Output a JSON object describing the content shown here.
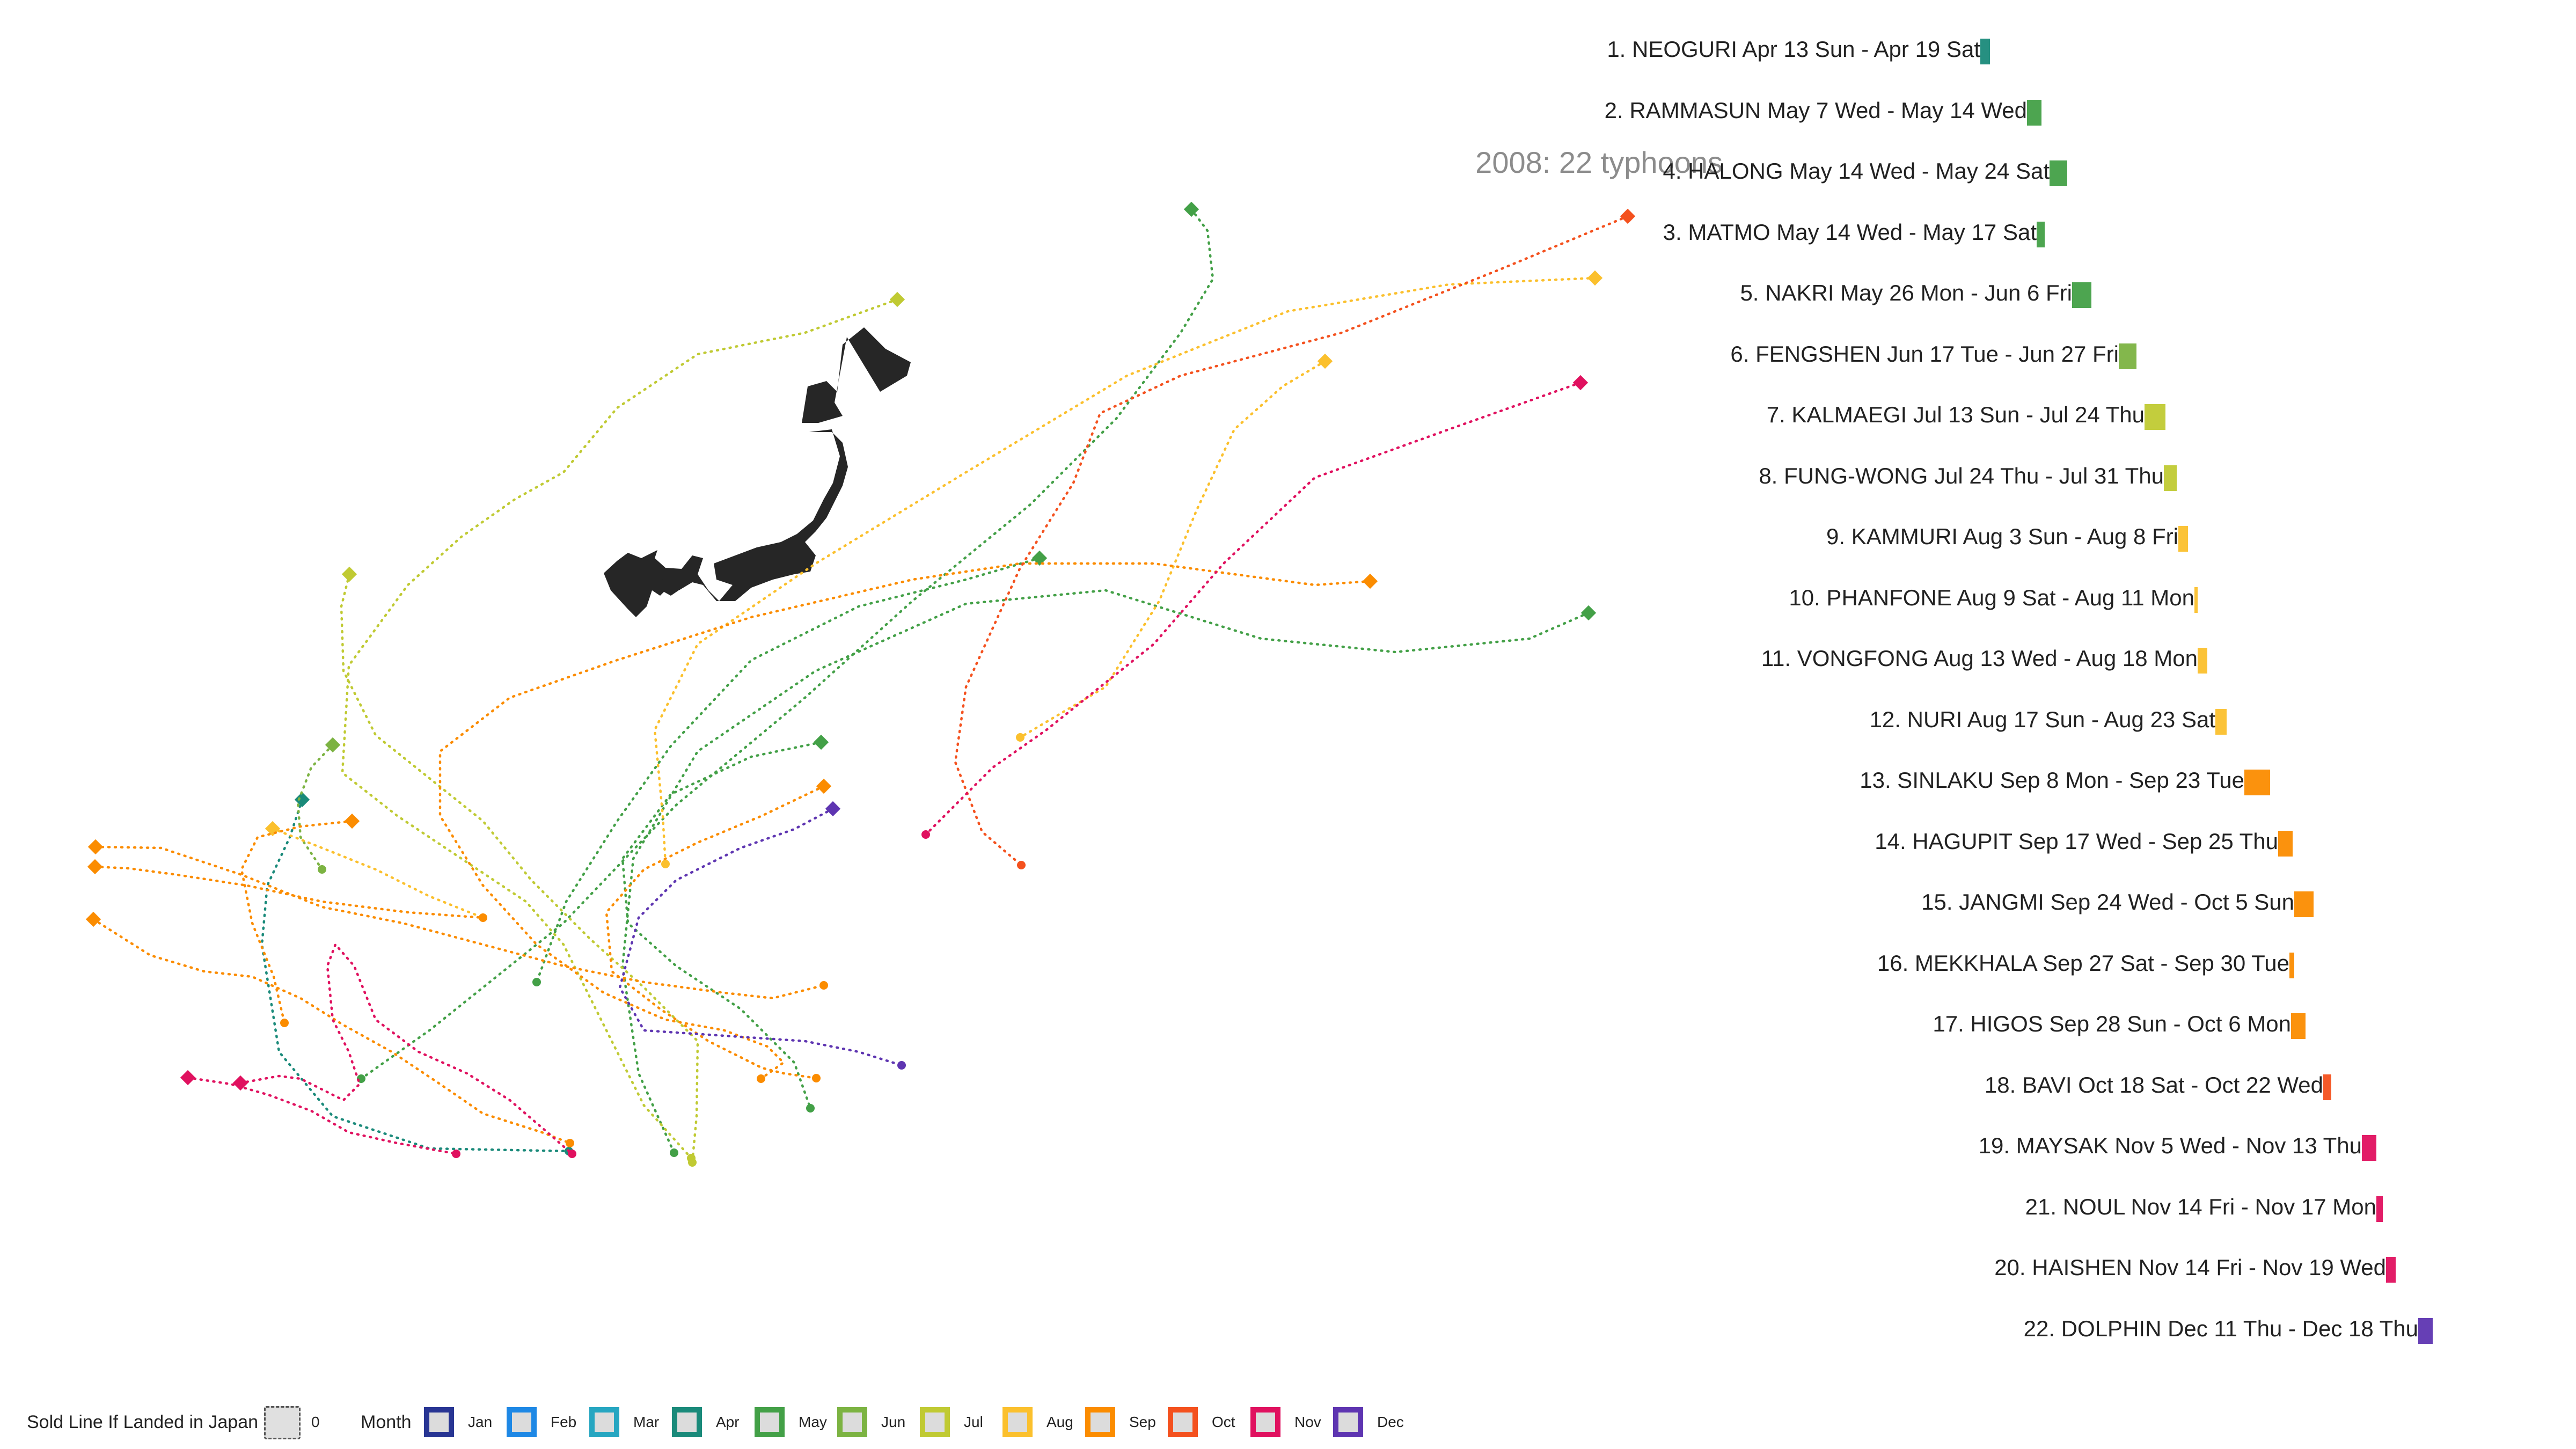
{
  "title": "2008: 22 typhoons",
  "month_colors": {
    "Jan": "#283593",
    "Feb": "#1e88e5",
    "Mar": "#26a6c1",
    "Apr": "#1a8a7a",
    "May": "#43a047",
    "Jun": "#7cb342",
    "Jul": "#c0ca33",
    "Aug": "#fbc02d",
    "Sep": "#fb8c00",
    "Oct": "#f4511e",
    "Nov": "#e0115f",
    "Dec": "#5e35b1"
  },
  "timeline": [
    {
      "label": "1. NEOGURI Apr 13 Sun - Apr 19 Sat",
      "month": "Apr"
    },
    {
      "label": "2. RAMMASUN May  7 Wed - May 14 Wed",
      "month": "May"
    },
    {
      "label": "4. HALONG May 14 Wed - May 24 Sat",
      "month": "May"
    },
    {
      "label": "3. MATMO May 14 Wed - May 17 Sat",
      "month": "May"
    },
    {
      "label": "5. NAKRI May 26 Mon - Jun  6 Fri",
      "month": "May"
    },
    {
      "label": "6. FENGSHEN Jun 17 Tue - Jun 27 Fri",
      "month": "Jun"
    },
    {
      "label": "7. KALMAEGI Jul 13 Sun - Jul 24 Thu",
      "month": "Jul"
    },
    {
      "label": "8. FUNG-WONG Jul 24 Thu - Jul 31 Thu",
      "month": "Jul"
    },
    {
      "label": "9. KAMMURI Aug  3 Sun - Aug  8 Fri",
      "month": "Aug"
    },
    {
      "label": "10. PHANFONE Aug  9 Sat - Aug 11 Mon",
      "month": "Aug"
    },
    {
      "label": "11. VONGFONG Aug 13 Wed - Aug 18 Mon",
      "month": "Aug"
    },
    {
      "label": "12. NURI Aug 17 Sun - Aug 23 Sat",
      "month": "Aug"
    },
    {
      "label": "13. SINLAKU Sep  8 Mon - Sep 23 Tue",
      "month": "Sep"
    },
    {
      "label": "14. HAGUPIT Sep 17 Wed - Sep 25 Thu",
      "month": "Sep"
    },
    {
      "label": "15. JANGMI Sep 24 Wed - Oct  5 Sun",
      "month": "Sep"
    },
    {
      "label": "16. MEKKHALA Sep 27 Sat - Sep 30 Tue",
      "month": "Sep"
    },
    {
      "label": "17. HIGOS Sep 28 Sun - Oct  6 Mon",
      "month": "Sep"
    },
    {
      "label": "18. BAVI Oct 18 Sat - Oct 22 Wed",
      "month": "Oct"
    },
    {
      "label": "19. MAYSAK Nov  5 Wed - Nov 13 Thu",
      "month": "Nov"
    },
    {
      "label": "21. NOUL Nov 14 Fri - Nov 17 Mon",
      "month": "Nov"
    },
    {
      "label": "20. HAISHEN Nov 14 Fri - Nov 19 Wed",
      "month": "Nov"
    },
    {
      "label": "22. DOLPHIN Dec 11 Thu - Dec 18 Thu",
      "month": "Dec"
    }
  ],
  "legend": {
    "landed_label": "Sold Line If Landed in Japan",
    "landed_count": "0",
    "month_label": "Month",
    "months": [
      "Jan",
      "Feb",
      "Mar",
      "Apr",
      "May",
      "Jun",
      "Jul",
      "Aug",
      "Sep",
      "Oct",
      "Nov",
      "Dec"
    ]
  }
}
